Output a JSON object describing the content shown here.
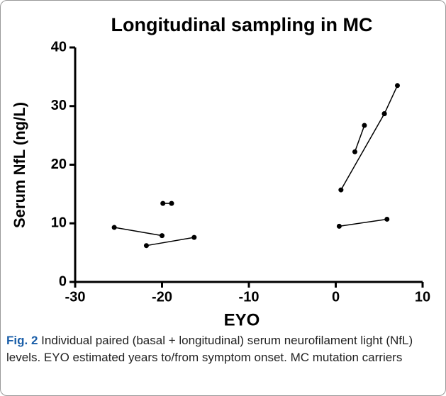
{
  "chart_data": {
    "type": "line",
    "title": "Longitudinal sampling in MC",
    "x_label": "EYO",
    "y_label": "Serum NfL (ng/L)",
    "series": [
      {
        "color": "#000000",
        "x": [
          -25.5,
          -20.0
        ],
        "values": [
          9.3,
          7.9
        ]
      },
      {
        "color": "#000000",
        "x": [
          -21.8,
          -16.3
        ],
        "values": [
          6.2,
          7.6
        ]
      },
      {
        "color": "#000000",
        "x": [
          -19.9,
          -18.9
        ],
        "values": [
          13.4,
          13.4
        ]
      },
      {
        "color": "#000000",
        "x": [
          0.4,
          5.9
        ],
        "values": [
          9.5,
          10.7
        ]
      },
      {
        "color": "#000000",
        "x": [
          0.6,
          5.6
        ],
        "values": [
          15.7,
          28.7
        ]
      },
      {
        "color": "#000000",
        "x": [
          2.2,
          3.3
        ],
        "values": [
          22.2,
          26.7
        ]
      },
      {
        "color": "#000000",
        "x": [
          5.6,
          7.1
        ],
        "values": [
          28.7,
          33.5
        ]
      }
    ],
    "xlim": [
      -30,
      10
    ],
    "xticks": [
      -30,
      -20,
      -10,
      0,
      10
    ],
    "ylim": [
      0,
      40
    ],
    "yticks": [
      0,
      10,
      20,
      30,
      40
    ]
  },
  "caption": {
    "label": "Fig. 2",
    "text": "Individual paired (basal + longitudinal) serum neurofilament light (NfL) levels. EYO estimated years to/from symptom onset. MC mutation carriers"
  }
}
